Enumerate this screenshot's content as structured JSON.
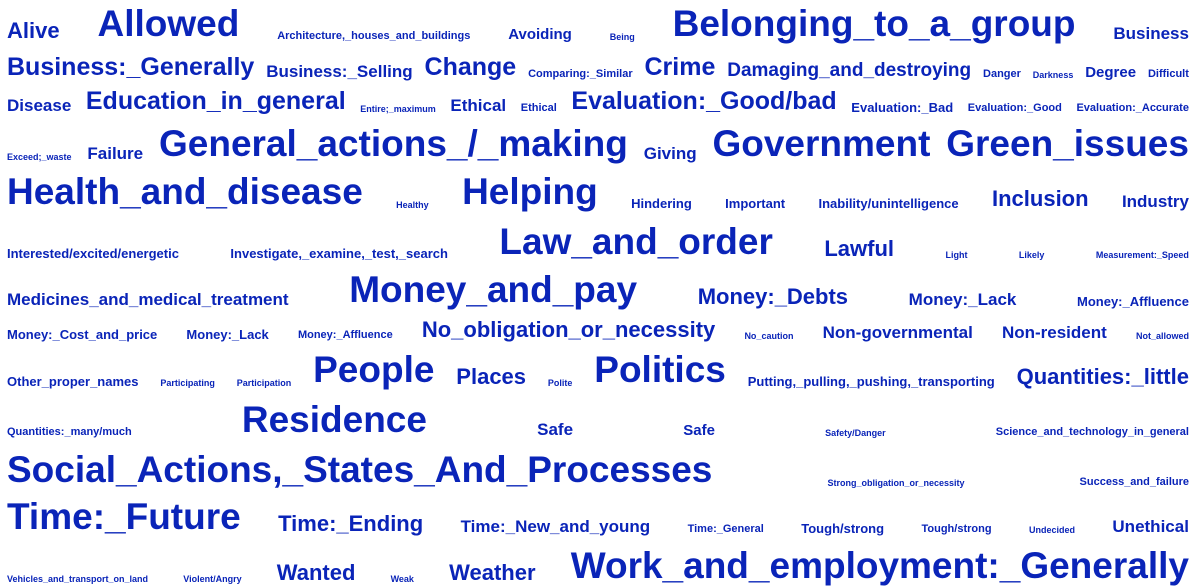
{
  "accent_color": "#0a24b8",
  "background_color": "#ffffff",
  "rows": [
    [
      {
        "text": "Alive",
        "size": 7
      },
      {
        "text": "Allowed",
        "size": 11
      },
      {
        "text": "Architecture,_houses_and_buildings",
        "size": 2
      },
      {
        "text": "Avoiding",
        "size": 4
      },
      {
        "text": "Being",
        "size": 1
      },
      {
        "text": "Belonging_to_a_group",
        "size": 11
      },
      {
        "text": "Business",
        "size": 5
      }
    ],
    [
      {
        "text": "Business:_Generally",
        "size": 8
      },
      {
        "text": "Business:_Selling",
        "size": 5
      },
      {
        "text": "Change",
        "size": 8
      },
      {
        "text": "Comparing:_Similar",
        "size": 2
      },
      {
        "text": "Crime",
        "size": 8
      },
      {
        "text": "Damaging_and_destroying",
        "size": 6
      },
      {
        "text": "Danger",
        "size": 2
      },
      {
        "text": "Darkness",
        "size": 1
      },
      {
        "text": "Degree",
        "size": 4
      },
      {
        "text": "Difficult",
        "size": 2
      }
    ],
    [
      {
        "text": "Disease",
        "size": 5
      },
      {
        "text": "Education_in_general",
        "size": 8
      },
      {
        "text": "Entire;_maximum",
        "size": 1
      },
      {
        "text": "Ethical",
        "size": 5
      },
      {
        "text": "Ethical",
        "size": 2
      },
      {
        "text": "Evaluation:_Good/bad",
        "size": 8
      },
      {
        "text": "Evaluation:_Bad",
        "size": 3
      },
      {
        "text": "Evaluation:_Good",
        "size": 2
      },
      {
        "text": "Evaluation:_Accurate",
        "size": 2
      }
    ],
    [
      {
        "text": "Exceed;_waste",
        "size": 1
      },
      {
        "text": "Failure",
        "size": 5
      },
      {
        "text": "General_actions_/_making",
        "size": 11
      },
      {
        "text": "Giving",
        "size": 5
      },
      {
        "text": "Government",
        "size": 11
      },
      {
        "text": "Green_issues",
        "size": 11
      }
    ],
    [
      {
        "text": "Health_and_disease",
        "size": 11
      },
      {
        "text": "Healthy",
        "size": 1
      },
      {
        "text": "Helping",
        "size": 11
      },
      {
        "text": "Hindering",
        "size": 3
      },
      {
        "text": "Important",
        "size": 3
      },
      {
        "text": "Inability/unintelligence",
        "size": 3
      },
      {
        "text": "Inclusion",
        "size": 7
      },
      {
        "text": "Industry",
        "size": 5
      }
    ],
    [
      {
        "text": "Interested/excited/energetic",
        "size": 3
      },
      {
        "text": "Investigate,_examine,_test,_search",
        "size": 3
      },
      {
        "text": "Law_and_order",
        "size": 11
      },
      {
        "text": "Lawful",
        "size": 7
      },
      {
        "text": "Light",
        "size": 1
      },
      {
        "text": "Likely",
        "size": 1
      },
      {
        "text": "Measurement:_Speed",
        "size": 1
      }
    ],
    [
      {
        "text": "Medicines_and_medical_treatment",
        "size": 5
      },
      {
        "text": "Money_and_pay",
        "size": 11
      },
      {
        "text": "Money:_Debts",
        "size": 7
      },
      {
        "text": "Money:_Lack",
        "size": 5
      },
      {
        "text": "Money:_Affluence",
        "size": 3
      }
    ],
    [
      {
        "text": "Money:_Cost_and_price",
        "size": 3
      },
      {
        "text": "Money:_Lack",
        "size": 3
      },
      {
        "text": "Money:_Affluence",
        "size": 2
      },
      {
        "text": "No_obligation_or_necessity",
        "size": 7
      },
      {
        "text": "No_caution",
        "size": 1
      },
      {
        "text": "Non-governmental",
        "size": 5
      },
      {
        "text": "Non-resident",
        "size": 5
      },
      {
        "text": "Not_allowed",
        "size": 1
      }
    ],
    [
      {
        "text": "Other_proper_names",
        "size": 3
      },
      {
        "text": "Participating",
        "size": 1
      },
      {
        "text": "Participation",
        "size": 1
      },
      {
        "text": "People",
        "size": 11
      },
      {
        "text": "Places",
        "size": 7
      },
      {
        "text": "Polite",
        "size": 1
      },
      {
        "text": "Politics",
        "size": 11
      },
      {
        "text": "Putting,_pulling,_pushing,_transporting",
        "size": 3
      },
      {
        "text": "Quantities:_little",
        "size": 7
      }
    ],
    [
      {
        "text": "Quantities:_many/much",
        "size": 2
      },
      {
        "text": "Residence",
        "size": 11
      },
      {
        "text": "Safe",
        "size": 5
      },
      {
        "text": "Safe",
        "size": 4
      },
      {
        "text": "Safety/Danger",
        "size": 1
      },
      {
        "text": "Science_and_technology_in_general",
        "size": 2
      }
    ],
    [
      {
        "text": "Social_Actions,_States_And_Processes",
        "size": 11
      },
      {
        "text": "Strong_obligation_or_necessity",
        "size": 1
      },
      {
        "text": "Success_and_failure",
        "size": 2
      }
    ],
    [
      {
        "text": "Time:_Future",
        "size": 11
      },
      {
        "text": "Time:_Ending",
        "size": 7
      },
      {
        "text": "Time:_New_and_young",
        "size": 5
      },
      {
        "text": "Time:_General",
        "size": 2
      },
      {
        "text": "Tough/strong",
        "size": 3
      },
      {
        "text": "Tough/strong",
        "size": 2
      },
      {
        "text": "Undecided",
        "size": 1
      },
      {
        "text": "Unethical",
        "size": 5
      }
    ],
    [
      {
        "text": "Vehicles_and_transport_on_land",
        "size": 1
      },
      {
        "text": "Violent/Angry",
        "size": 1
      },
      {
        "text": "Wanted",
        "size": 7
      },
      {
        "text": "Weak",
        "size": 1
      },
      {
        "text": "Weather",
        "size": 7
      },
      {
        "text": "Work_and_employment:_Generally",
        "size": 11
      }
    ]
  ]
}
